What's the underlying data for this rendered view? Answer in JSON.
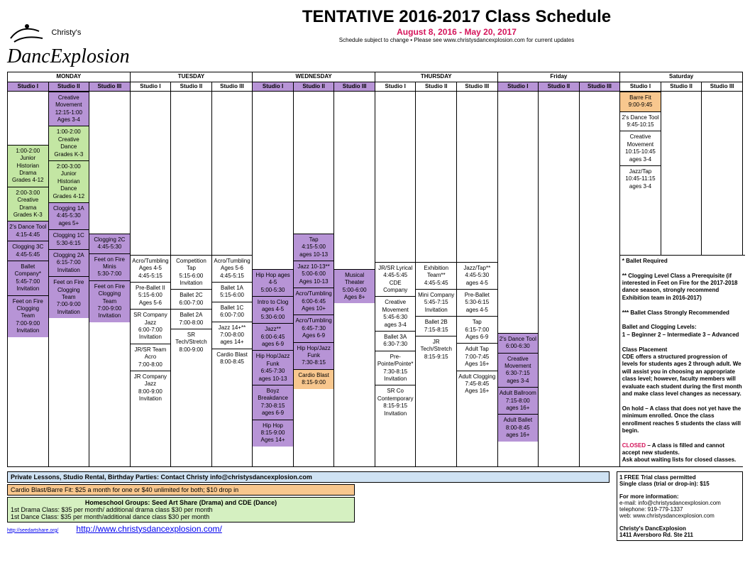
{
  "header": {
    "logo_small": "Christy's",
    "logo_main": "DancExplosion",
    "title": "TENTATIVE 2016-2017 Class Schedule",
    "date_range": "August 8, 2016 - May 20, 2017",
    "note": "Schedule subject to change • Please see www.christysdancexplosion.com for current updates"
  },
  "days": [
    "MONDAY",
    "TUESDAY",
    "WEDNESDAY",
    "THURSDAY",
    "Friday",
    "Saturday"
  ],
  "studios": [
    "Studio I",
    "Studio II",
    "Studio III"
  ],
  "mon": {
    "s1": [
      {
        "t": "1:00-2:00",
        "n": "Junior Historian Drama",
        "a": "Grades 4-12",
        "c": "green"
      },
      {
        "t": "2:00-3:00",
        "n": "Creative Drama",
        "a": "Grades K-3",
        "c": "green"
      },
      {
        "t": "",
        "n": "2's Dance Tool",
        "a": "4:15-4:45",
        "c": "purple"
      },
      {
        "t": "",
        "n": "Clogging 3C",
        "a": "4:45-5:45",
        "c": "purple"
      },
      {
        "t": "",
        "n": "Ballet Company*",
        "a": "5:45-7:00 Invitation",
        "c": "purple"
      },
      {
        "t": "",
        "n": "Feet on Fire Clogging Team",
        "a": "7:00-9:00 Invitation",
        "c": "purple"
      }
    ],
    "s2": [
      {
        "t": "",
        "n": "Creative Movement",
        "a": "12:15-1:00 Ages 3-4",
        "c": "purple"
      },
      {
        "t": "1:00-2:00",
        "n": "Creative Dance",
        "a": "Grades K-3",
        "c": "green"
      },
      {
        "t": "2:00-3:00",
        "n": "Junior Historian Dance",
        "a": "Grades 4-12",
        "c": "green"
      },
      {
        "t": "",
        "n": "Clogging 1A",
        "a": "4:45-5:30 ages 5+",
        "c": "purple"
      },
      {
        "t": "",
        "n": "Clogging 1C",
        "a": "5:30-6:15",
        "c": "purple"
      },
      {
        "t": "",
        "n": "Clogging 2A",
        "a": "6:15-7:00 Invitation",
        "c": "purple"
      },
      {
        "t": "",
        "n": "Feet on Fire Clogging Team",
        "a": "7:00-9:00 Invitation",
        "c": "purple"
      }
    ],
    "s3": [
      {
        "t": "",
        "n": "Clogging 2C",
        "a": "4:45-5:30",
        "c": "purple"
      },
      {
        "t": "",
        "n": "Feet on Fire Minis",
        "a": "5:30-7:00",
        "c": "purple"
      },
      {
        "t": "",
        "n": "Feet on Fire Clogging Team",
        "a": "7:00-9:00 Invitation",
        "c": "purple"
      }
    ]
  },
  "tue": {
    "s1": [
      {
        "n": "Acro/Tumbling Ages 4-5",
        "a": "4:45-5:15"
      },
      {
        "n": "Pre-Ballet II",
        "a": "5:15-6:00 Ages 5-6"
      },
      {
        "n": "SR Company Jazz",
        "a": "6:00-7:00 Invitation"
      },
      {
        "n": "JR/SR Team Acro",
        "a": "7:00-8:00"
      },
      {
        "n": "JR Company Jazz",
        "a": "8:00-9:00 Invitation"
      }
    ],
    "s2": [
      {
        "n": "Competition Tap",
        "a": "5:15-6:00 Invitation"
      },
      {
        "n": "Ballet 2C",
        "a": "6:00-7:00"
      },
      {
        "n": "Ballet 2A",
        "a": "7:00-8:00"
      },
      {
        "n": "SR Tech/Stretch",
        "a": "8:00-9:00"
      }
    ],
    "s3": [
      {
        "n": "Acro/Tumbling Ages 5-6",
        "a": "4:45-5:15"
      },
      {
        "n": "Ballet 1A",
        "a": "5:15-6:00"
      },
      {
        "n": "Ballet 1C",
        "a": "6:00-7:00"
      },
      {
        "n": "Jazz 14+**",
        "a": "7:00-8:00 ages 14+"
      },
      {
        "n": "Cardio Blast",
        "a": "8:00-8:45"
      }
    ]
  },
  "wed": {
    "s1": [
      {
        "n": "Hip Hop ages 4-5",
        "a": "5:00-5:30",
        "c": "purple"
      },
      {
        "n": "Intro to Clog ages 4-5",
        "a": "5:30-6:00",
        "c": "purple"
      },
      {
        "n": "Jazz**",
        "a": "6:00-6:45 ages 6-9",
        "c": "purple"
      },
      {
        "n": "Hip Hop/Jazz Funk",
        "a": "6:45-7:30 ages 10-13",
        "c": "purple"
      },
      {
        "n": "Boyz Breakdance",
        "a": "7:30-8:15 ages 6-9",
        "c": "purple"
      },
      {
        "n": "Hip Hop",
        "a": "8:15-9:00 Ages 14+",
        "c": "purple"
      }
    ],
    "s2": [
      {
        "n": "Tap",
        "a": "4:15-5:00 ages 10-13",
        "c": "purple"
      },
      {
        "n": "Jazz 10-13**",
        "a": "5:00-6:00 Ages 10-13",
        "c": "purple"
      },
      {
        "n": "Acro/Tumbling",
        "a": "6:00-6:45 Ages 10+",
        "c": "purple"
      },
      {
        "n": "Acro/Tumbling",
        "a": "6:45-7:30 Ages 6-9",
        "c": "purple"
      },
      {
        "n": "Hip Hop/Jazz Funk",
        "a": "7:30-8:15",
        "c": "purple"
      },
      {
        "n": "Cardio Blast",
        "a": "8:15-9:00",
        "c": "orange"
      }
    ],
    "s3": [
      {
        "n": "Musical Theater",
        "a": "5:00-6:00 Ages 8+",
        "c": "purple"
      }
    ]
  },
  "thu": {
    "s1": [
      {
        "n": "JR/SR Lyrical",
        "a": "4:45-5:45 CDE Company"
      },
      {
        "n": "Creative Movement",
        "a": "5:45-6:30 ages 3-4"
      },
      {
        "n": "Ballet 3A",
        "a": "6:30-7:30"
      },
      {
        "n": "Pre-Pointe/Pointe*",
        "a": "7:30-8:15 Invitation"
      },
      {
        "n": "SR Co Contemporary",
        "a": "8:15-9:15 Invitation"
      }
    ],
    "s2": [
      {
        "n": "Exhibition Team**",
        "a": "4:45-5:45"
      },
      {
        "n": "Mini Company",
        "a": "5:45-7:15 Invitation"
      },
      {
        "n": "Ballet 2B",
        "a": "7:15-8:15"
      },
      {
        "n": "JR Tech/Stretch",
        "a": "8:15-9:15"
      }
    ],
    "s3": [
      {
        "n": "Jazz/Tap**",
        "a": "4:45-5:30 ages 4-5"
      },
      {
        "n": "Pre-Ballet",
        "a": "5:30-6:15 ages 4-5"
      },
      {
        "n": "Tap",
        "a": "6:15-7:00 Ages 6-9"
      },
      {
        "n": "Adult Tap",
        "a": "7:00-7:45 Ages 16+"
      },
      {
        "n": "Adult Clogging",
        "a": "7:45-8:45 Ages 16+"
      }
    ]
  },
  "fri": {
    "s1": [
      {
        "n": "2's Dance Tool",
        "a": "6:00-6:30",
        "c": "purple"
      },
      {
        "n": "Creative Movement",
        "a": "6:30-7:15 ages 3-4",
        "c": "purple"
      },
      {
        "n": "Adult Ballroom",
        "a": "7:15-8:00 ages 16+",
        "c": "purple"
      },
      {
        "n": "Adult Ballet",
        "a": "8:00-8:45 ages 16+",
        "c": "purple"
      }
    ]
  },
  "sat": {
    "s1": [
      {
        "n": "Barre Fit",
        "a": "9:00-9:45",
        "c": "orange"
      },
      {
        "n": "2's Dance Tool",
        "a": "9:45-10:15"
      },
      {
        "n": "Creative Movement",
        "a": "10:15-10:45 ages 3-4"
      },
      {
        "n": "Jazz/Tap",
        "a": "10:45-11:15 ages 3-4"
      }
    ]
  },
  "sidebar": {
    "bullet1": "*    Ballet Required",
    "bullet2": "** Clogging Level Class a Prerequisite (if interested in Feet on Fire for the 2017-2018 dance season, strongly recommend Exhibition team in 2016-2017)",
    "bullet3": "*** Ballet Class Strongly Recommended",
    "levels_h": "Ballet and Clogging Levels:",
    "levels": "1 – Beginner  2 – Intermediate  3 – Advanced",
    "placement_h": "Class Placement",
    "placement": "CDE offers a structured progression of levels for students ages 2 through adult. We will assist you in choosing an appropriate class level; however, faculty members will evaluate each student during the first month and make class level changes as necessary.",
    "hold": "On hold – A class that does not yet have the minimum enrolled. Once the class enrollment reaches 5 students the class will begin.",
    "closed": "CLOSED – A class is filled and cannot accept new students.",
    "ask": "Ask about waiting lists for closed classes."
  },
  "footer": {
    "private": "Private Lessons, Studio Rental, Birthday Parties:  Contact Christy info@christysdancexplosion.com",
    "cardio": "Cardio Blast/Barre Fit: $25 a month for one or $40 unlimited for both; $10 drop in",
    "homeschool_h": "Homeschool Groups: Seed Art Share (Drama) and CDE (Dance)",
    "homeschool_1": "1st Drama Class: $35 per month/ additional drama class $30 per month",
    "homeschool_2": "1st Dance Class: $35 per month/additional dance class $30 per month",
    "link1": "http://seedartshare.org/",
    "link2": "http://www.christysdancexplosion.com/",
    "trial": "1 FREE Trial class permitted",
    "single": "Single class (trial or drop-in):  $15",
    "info_h": "For more information:",
    "email": "e-mail: info@christysdancexplosion.com",
    "phone": "telephone: 919-779-1337",
    "web": "web: www.christysdancexplosion.com",
    "addr1": "Christy's DancExplosion",
    "addr2": "1411 Aversboro Rd. Ste 211"
  }
}
